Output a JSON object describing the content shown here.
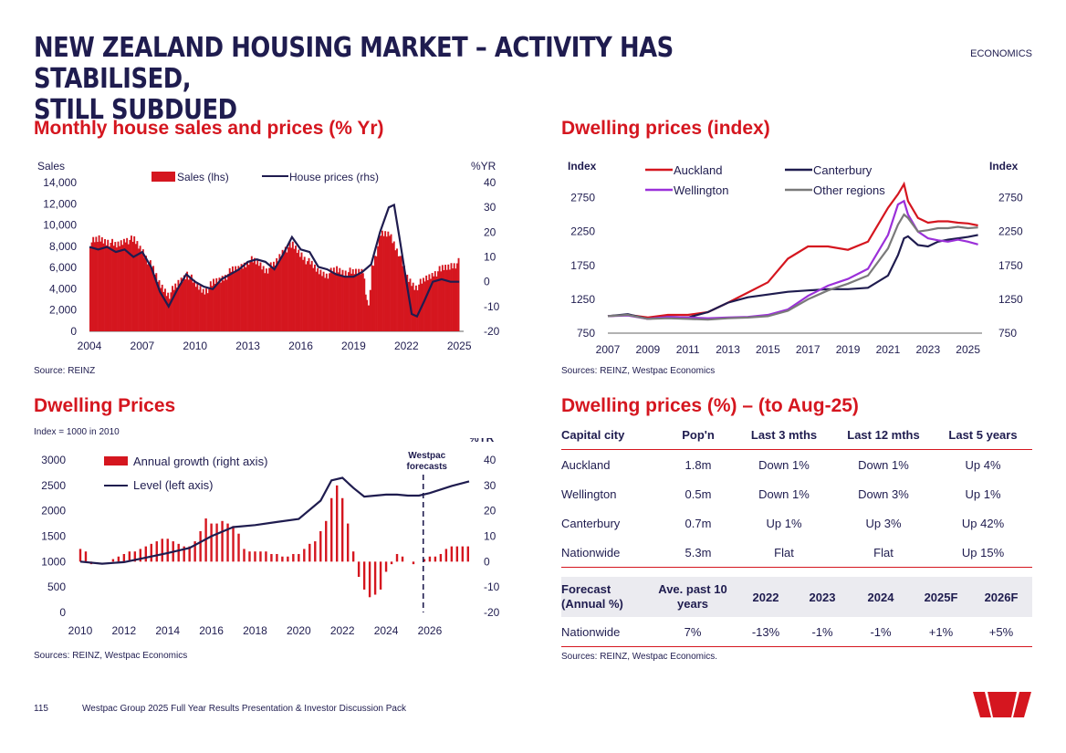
{
  "header": {
    "title_line1": "NEW ZEALAND HOUSING MARKET – ACTIVITY HAS STABILISED,",
    "title_line2": "STILL SUBDUED",
    "section_tag": "ECONOMICS"
  },
  "footer": {
    "page_number": "115",
    "document_title": "Westpac Group 2025 Full Year Results Presentation & Investor Discussion Pack",
    "logo": "westpac-logo",
    "brand_color": "#d5161f"
  },
  "chart_data": [
    {
      "id": "sales_prices",
      "type": "bar",
      "title": "Monthly house sales and prices (% Yr)",
      "source": "Source: REINZ",
      "left_axis_label": "Sales",
      "right_axis_label": "%YR",
      "legend": [
        "Sales (lhs)",
        "House prices (rhs)"
      ],
      "x_ticks": [
        "2004",
        "2007",
        "2010",
        "2013",
        "2016",
        "2019",
        "2022",
        "2025"
      ],
      "xlim": [
        2004,
        2025.25
      ],
      "ylim_left": [
        0,
        14000
      ],
      "left_ticks": [
        "0",
        "2,000",
        "4,000",
        "6,000",
        "8,000",
        "10,000",
        "12,000",
        "14,000"
      ],
      "ylim_right": [
        -20,
        40
      ],
      "right_ticks": [
        "-20",
        "-10",
        "0",
        "10",
        "20",
        "30",
        "40"
      ],
      "sales_x": [
        2004,
        2004.5,
        2005,
        2005.5,
        2006,
        2006.5,
        2007,
        2007.5,
        2008,
        2008.5,
        2009,
        2009.5,
        2010,
        2010.5,
        2011,
        2011.5,
        2012,
        2012.5,
        2013,
        2013.5,
        2014,
        2014.5,
        2015,
        2015.5,
        2016,
        2016.5,
        2017,
        2017.5,
        2018,
        2018.5,
        2019,
        2019.5,
        2019.8,
        2020,
        2020.5,
        2021,
        2021.5,
        2022,
        2022.5,
        2023,
        2023.5,
        2024,
        2024.5,
        2025
      ],
      "sales": [
        8300,
        8700,
        8500,
        8000,
        8700,
        8500,
        7500,
        6000,
        4300,
        3500,
        4500,
        5500,
        4300,
        3800,
        4500,
        5000,
        5600,
        6000,
        6700,
        6500,
        5800,
        6300,
        7800,
        8000,
        7200,
        6300,
        5600,
        5400,
        5800,
        5600,
        5500,
        5800,
        2000,
        6000,
        9000,
        9200,
        7500,
        5000,
        4200,
        4800,
        5500,
        5800,
        6200,
        6500
      ],
      "prices_x": [
        2004,
        2004.5,
        2005,
        2005.5,
        2006,
        2006.5,
        2007,
        2007.5,
        2008,
        2008.5,
        2009,
        2009.5,
        2010,
        2010.5,
        2011,
        2011.5,
        2012,
        2012.5,
        2013,
        2013.5,
        2014,
        2014.5,
        2015,
        2015.5,
        2016,
        2016.5,
        2017,
        2017.5,
        2018,
        2018.5,
        2019,
        2019.5,
        2020,
        2020.5,
        2021,
        2021.3,
        2021.6,
        2022,
        2022.3,
        2022.6,
        2023,
        2023.5,
        2024,
        2024.5,
        2025
      ],
      "prices": [
        14,
        13,
        14,
        12,
        13,
        10,
        12,
        6,
        -4,
        -10,
        -3,
        3,
        0,
        -2,
        -3,
        1,
        3,
        5,
        8,
        9,
        8,
        5,
        11,
        18,
        13,
        12,
        6,
        5,
        3,
        2,
        2,
        4,
        7,
        20,
        30,
        31,
        18,
        0,
        -13,
        -14,
        -8,
        0,
        1,
        0,
        0
      ]
    },
    {
      "id": "dwelling_index",
      "type": "line",
      "title": "Dwelling prices (index)",
      "source": "Sources: REINZ, Westpac Economics",
      "left_axis_label": "Index",
      "right_axis_label": "Index",
      "x_ticks": [
        "2007",
        "2009",
        "2011",
        "2013",
        "2015",
        "2017",
        "2019",
        "2021",
        "2023",
        "2025"
      ],
      "xlim": [
        2007,
        2025.7
      ],
      "ylim": [
        750,
        3000
      ],
      "y_ticks": [
        "750",
        "1250",
        "1750",
        "2250",
        "2750"
      ],
      "x": [
        2007,
        2008,
        2009,
        2010,
        2011,
        2012,
        2013,
        2014,
        2015,
        2016,
        2017,
        2018,
        2019,
        2020,
        2021,
        2021.5,
        2021.8,
        2022,
        2022.5,
        2023,
        2023.5,
        2024,
        2024.5,
        2025,
        2025.5
      ],
      "series": [
        {
          "name": "Auckland",
          "color": "#d5161f",
          "values": [
            1000,
            1020,
            980,
            1020,
            1020,
            1060,
            1200,
            1350,
            1500,
            1850,
            2030,
            2030,
            1980,
            2100,
            2600,
            2800,
            2950,
            2700,
            2450,
            2380,
            2400,
            2400,
            2380,
            2370,
            2340
          ]
        },
        {
          "name": "Canterbury",
          "color": "#1f1c4f",
          "values": [
            1000,
            1030,
            960,
            990,
            980,
            1060,
            1200,
            1280,
            1320,
            1360,
            1380,
            1400,
            1400,
            1420,
            1600,
            1900,
            2150,
            2180,
            2050,
            2030,
            2100,
            2130,
            2150,
            2170,
            2200
          ]
        },
        {
          "name": "Wellington",
          "color": "#9b30d9",
          "values": [
            1000,
            1010,
            960,
            990,
            980,
            970,
            980,
            990,
            1020,
            1100,
            1300,
            1450,
            1550,
            1700,
            2200,
            2650,
            2700,
            2500,
            2250,
            2150,
            2120,
            2100,
            2130,
            2100,
            2060
          ]
        },
        {
          "name": "Other regions",
          "color": "#7a7a7a",
          "values": [
            1000,
            1020,
            960,
            970,
            960,
            950,
            970,
            980,
            1000,
            1080,
            1250,
            1380,
            1480,
            1600,
            2000,
            2350,
            2500,
            2450,
            2250,
            2270,
            2300,
            2300,
            2320,
            2300,
            2310
          ]
        }
      ]
    },
    {
      "id": "dwelling_prices",
      "type": "bar",
      "title": "Dwelling Prices",
      "source": "Sources: REINZ, Westpac Economics",
      "subtitle": "Index = 1000 in 2010",
      "right_axis_label": "%YR",
      "forecast_label": "Westpac forecasts",
      "forecast_x": 2025.7,
      "legend": [
        "Annual growth (right axis)",
        "Level (left axis)"
      ],
      "x_ticks": [
        "2010",
        "2012",
        "2014",
        "2016",
        "2018",
        "2020",
        "2022",
        "2024",
        "2026"
      ],
      "xlim": [
        2010,
        2027.8
      ],
      "ylim_left": [
        0,
        3000
      ],
      "left_ticks": [
        "0",
        "500",
        "1000",
        "1500",
        "2000",
        "2500",
        "3000"
      ],
      "ylim_right": [
        -20,
        40
      ],
      "right_ticks": [
        "-20",
        "-10",
        "0",
        "10",
        "20",
        "30",
        "40"
      ],
      "growth_x": [
        2010,
        2010.25,
        2010.5,
        2011.5,
        2011.75,
        2012,
        2012.25,
        2012.5,
        2012.75,
        2013,
        2013.25,
        2013.5,
        2013.75,
        2014,
        2014.25,
        2014.5,
        2014.75,
        2015,
        2015.25,
        2015.5,
        2015.75,
        2016,
        2016.25,
        2016.5,
        2016.75,
        2017,
        2017.25,
        2017.5,
        2017.75,
        2018,
        2018.25,
        2018.5,
        2018.75,
        2019,
        2019.25,
        2019.5,
        2019.75,
        2020,
        2020.25,
        2020.5,
        2020.75,
        2021,
        2021.25,
        2021.5,
        2021.75,
        2022,
        2022.25,
        2022.5,
        2022.75,
        2023,
        2023.25,
        2023.5,
        2023.75,
        2024,
        2024.25,
        2024.5,
        2024.75,
        2025,
        2025.25,
        2025.5,
        2025.75,
        2026,
        2026.25,
        2026.5,
        2026.75,
        2027,
        2027.25,
        2027.5,
        2027.75
      ],
      "growth": [
        5,
        4,
        -1,
        1,
        2,
        3,
        4,
        4,
        5,
        6,
        7,
        8,
        9,
        9,
        8,
        7,
        6,
        6,
        8,
        12,
        17,
        15,
        15,
        16,
        15,
        14,
        11,
        5,
        4,
        4,
        4,
        4,
        3,
        3,
        2,
        2,
        3,
        3,
        5,
        7,
        8,
        12,
        16,
        25,
        30,
        25,
        15,
        4,
        -6,
        -11,
        -14,
        -13,
        -11,
        -4,
        -1,
        3,
        2,
        0,
        -1,
        0,
        1,
        2,
        2,
        3,
        5,
        6,
        6,
        6,
        6
      ],
      "level_x": [
        2010,
        2011,
        2012,
        2013,
        2014,
        2015,
        2016,
        2017,
        2018,
        2019,
        2020,
        2021,
        2021.5,
        2022,
        2022.5,
        2023,
        2023.5,
        2024,
        2024.5,
        2025,
        2025.5,
        2026,
        2026.5,
        2027,
        2027.8
      ],
      "level": [
        1000,
        960,
        990,
        1080,
        1170,
        1270,
        1500,
        1680,
        1720,
        1780,
        1840,
        2200,
        2600,
        2650,
        2450,
        2280,
        2300,
        2320,
        2320,
        2300,
        2300,
        2350,
        2420,
        2490,
        2580
      ]
    },
    {
      "id": "dwelling_prices_pct",
      "type": "table",
      "title": "Dwelling prices (%) – (to Aug-25)",
      "source": "Sources: REINZ, Westpac Economics.",
      "headers": [
        "Capital city",
        "Pop'n",
        "Last 3 mths",
        "Last 12 mths",
        "Last 5 years"
      ],
      "rows": [
        [
          "Auckland",
          "1.8m",
          "Down 1%",
          "Down 1%",
          "Up 4%"
        ],
        [
          "Wellington",
          "0.5m",
          "Down 1%",
          "Down 3%",
          "Up 1%"
        ],
        [
          "Canterbury",
          "0.7m",
          "Up 1%",
          "Up 3%",
          "Up 42%"
        ],
        [
          "Nationwide",
          "5.3m",
          "Flat",
          "Flat",
          "Up 15%"
        ]
      ],
      "forecast_headers": [
        "Forecast\n(Annual %)",
        "Ave. past 10\nyears",
        "2022",
        "2023",
        "2024",
        "2025F",
        "2026F"
      ],
      "forecast_row": [
        "Nationwide",
        "7%",
        "-13%",
        "-1%",
        "-1%",
        "+1%",
        "+5%"
      ]
    }
  ]
}
